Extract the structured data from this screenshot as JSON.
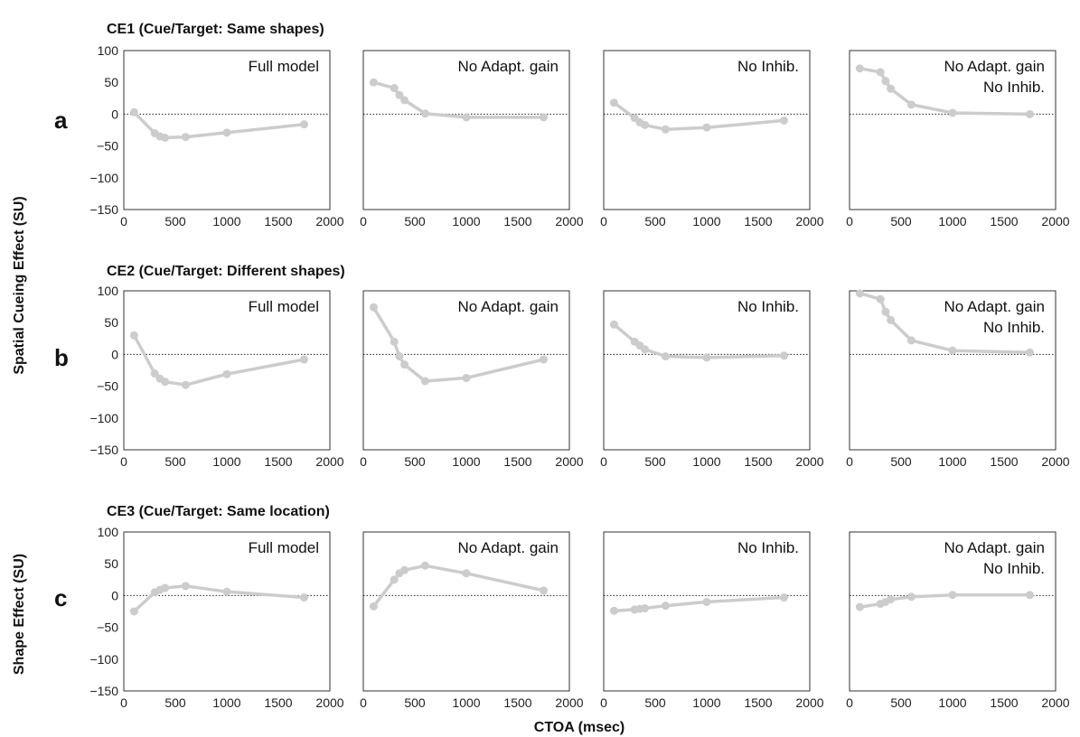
{
  "figure": {
    "ylabel_top": "Spatial Cueing Effect (SU)",
    "ylabel_bottom": "Shape Effect (SU)",
    "xlabel": "CTOA (msec)"
  },
  "rows": [
    {
      "letter": "a",
      "title": "CE1 (Cue/Target: Same shapes)"
    },
    {
      "letter": "b",
      "title": "CE2 (Cue/Target: Different shapes)"
    },
    {
      "letter": "c",
      "title": "CE3 (Cue/Target: Same location)"
    }
  ],
  "colors": {
    "series": "#cccccc",
    "frame": "#333333"
  },
  "chart_data": [
    {
      "type": "line",
      "row": 0,
      "col": 0,
      "label_lines": [
        "Full model"
      ],
      "xlim": [
        0,
        2000
      ],
      "ylim": [
        -150,
        100
      ],
      "x": [
        100,
        300,
        350,
        400,
        600,
        1000,
        1750
      ],
      "y": [
        3,
        -30,
        -35,
        -37,
        -36,
        -29,
        -16
      ]
    },
    {
      "type": "line",
      "row": 0,
      "col": 1,
      "label_lines": [
        "No Adapt. gain"
      ],
      "xlim": [
        0,
        2000
      ],
      "ylim": [
        -150,
        100
      ],
      "x": [
        100,
        300,
        350,
        400,
        600,
        1000,
        1750
      ],
      "y": [
        50,
        41,
        30,
        22,
        1,
        -5,
        -5
      ]
    },
    {
      "type": "line",
      "row": 0,
      "col": 2,
      "label_lines": [
        "No Inhib."
      ],
      "xlim": [
        0,
        2000
      ],
      "ylim": [
        -150,
        100
      ],
      "x": [
        100,
        300,
        350,
        400,
        600,
        1000,
        1750
      ],
      "y": [
        18,
        -6,
        -13,
        -17,
        -24,
        -21,
        -10
      ]
    },
    {
      "type": "line",
      "row": 0,
      "col": 3,
      "label_lines": [
        "No Adapt. gain",
        "No Inhib."
      ],
      "xlim": [
        0,
        2000
      ],
      "ylim": [
        -150,
        100
      ],
      "x": [
        100,
        300,
        350,
        400,
        600,
        1000,
        1750
      ],
      "y": [
        72,
        66,
        52,
        40,
        15,
        2,
        0
      ]
    },
    {
      "type": "line",
      "row": 1,
      "col": 0,
      "label_lines": [
        "Full model"
      ],
      "xlim": [
        0,
        2000
      ],
      "ylim": [
        -150,
        100
      ],
      "x": [
        100,
        300,
        350,
        400,
        600,
        1000,
        1750
      ],
      "y": [
        30,
        -30,
        -38,
        -43,
        -48,
        -31,
        -8
      ]
    },
    {
      "type": "line",
      "row": 1,
      "col": 1,
      "label_lines": [
        "No Adapt. gain"
      ],
      "xlim": [
        0,
        2000
      ],
      "ylim": [
        -150,
        100
      ],
      "x": [
        100,
        300,
        350,
        400,
        600,
        1000,
        1750
      ],
      "y": [
        74,
        20,
        -3,
        -16,
        -42,
        -37,
        -8
      ]
    },
    {
      "type": "line",
      "row": 1,
      "col": 2,
      "label_lines": [
        "No Inhib."
      ],
      "xlim": [
        0,
        2000
      ],
      "ylim": [
        -150,
        100
      ],
      "x": [
        100,
        300,
        350,
        400,
        600,
        1000,
        1750
      ],
      "y": [
        47,
        20,
        14,
        8,
        -3,
        -5,
        -2
      ]
    },
    {
      "type": "line",
      "row": 1,
      "col": 3,
      "label_lines": [
        "No Adapt. gain",
        "No Inhib."
      ],
      "xlim": [
        0,
        2000
      ],
      "ylim": [
        -150,
        100
      ],
      "x": [
        100,
        300,
        350,
        400,
        600,
        1000,
        1750
      ],
      "y": [
        96,
        87,
        67,
        54,
        22,
        6,
        3
      ]
    },
    {
      "type": "line",
      "row": 2,
      "col": 0,
      "label_lines": [
        "Full model"
      ],
      "xlim": [
        0,
        2000
      ],
      "ylim": [
        -150,
        100
      ],
      "x": [
        100,
        300,
        350,
        400,
        600,
        1000,
        1750
      ],
      "y": [
        -25,
        5,
        9,
        12,
        15,
        6,
        -3
      ]
    },
    {
      "type": "line",
      "row": 2,
      "col": 1,
      "label_lines": [
        "No Adapt. gain"
      ],
      "xlim": [
        0,
        2000
      ],
      "ylim": [
        -150,
        100
      ],
      "x": [
        100,
        300,
        350,
        400,
        600,
        1000,
        1750
      ],
      "y": [
        -17,
        25,
        35,
        40,
        47,
        35,
        8
      ]
    },
    {
      "type": "line",
      "row": 2,
      "col": 2,
      "label_lines": [
        "No Inhib."
      ],
      "xlim": [
        0,
        2000
      ],
      "ylim": [
        -150,
        100
      ],
      "x": [
        100,
        300,
        350,
        400,
        600,
        1000,
        1750
      ],
      "y": [
        -24,
        -22,
        -21,
        -20,
        -16,
        -10,
        -3
      ]
    },
    {
      "type": "line",
      "row": 2,
      "col": 3,
      "label_lines": [
        "No Adapt. gain",
        "No Inhib."
      ],
      "xlim": [
        0,
        2000
      ],
      "ylim": [
        -150,
        100
      ],
      "x": [
        100,
        300,
        350,
        400,
        600,
        1000,
        1750
      ],
      "y": [
        -18,
        -13,
        -10,
        -6,
        -2,
        1,
        1
      ]
    }
  ]
}
